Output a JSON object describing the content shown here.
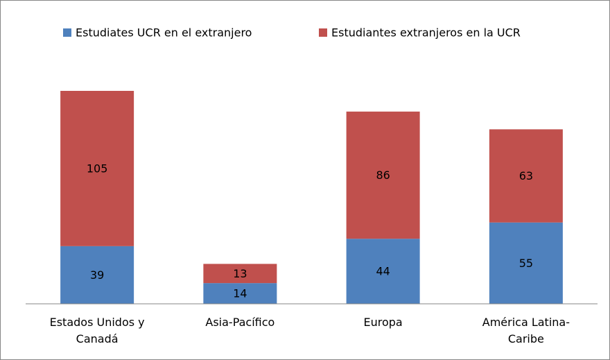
{
  "chart_data": {
    "type": "stacked_bar",
    "categories": [
      "Estados Unidos y Canadá",
      "Asia-Pacífico",
      "Europa",
      "América Latina-Caribe"
    ],
    "series": [
      {
        "name": "Estudiates UCR en el extranjero",
        "color": "#4f81bd",
        "values": [
          39,
          14,
          44,
          55
        ]
      },
      {
        "name": "Estudiantes extranjeros en la UCR",
        "color": "#c0504d",
        "values": [
          105,
          13,
          86,
          63
        ]
      }
    ],
    "legend": "top"
  }
}
